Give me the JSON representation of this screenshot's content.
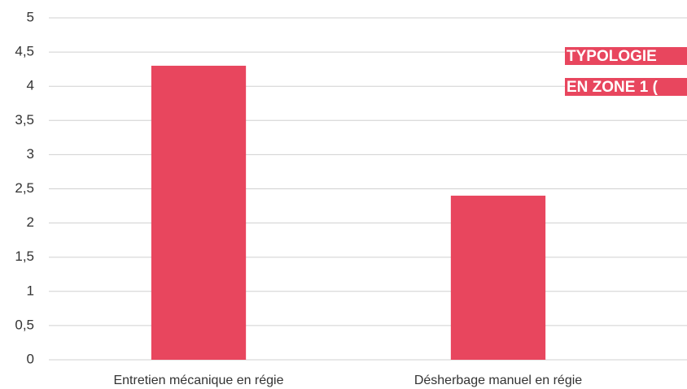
{
  "chart_data": {
    "type": "bar",
    "title_lines": [
      "TYPOLOGIE",
      "EN ZONE 1 ("
    ],
    "categories": [
      "Entretien mécanique en régie",
      "Désherbage manuel en régie"
    ],
    "values": [
      4.3,
      2.4
    ],
    "color": "#e8465e",
    "ylim": [
      0,
      5
    ],
    "yticks": [
      0,
      {
        "value": 0.5,
        "label": "0,5"
      },
      1,
      {
        "value": 1.5,
        "label": "1,5"
      },
      2,
      {
        "value": 2.5,
        "label": "2,5"
      },
      3,
      {
        "value": 3.5,
        "label": "3,5"
      },
      4,
      {
        "value": 4.5,
        "label": "4,5"
      },
      5
    ],
    "grid": true
  }
}
